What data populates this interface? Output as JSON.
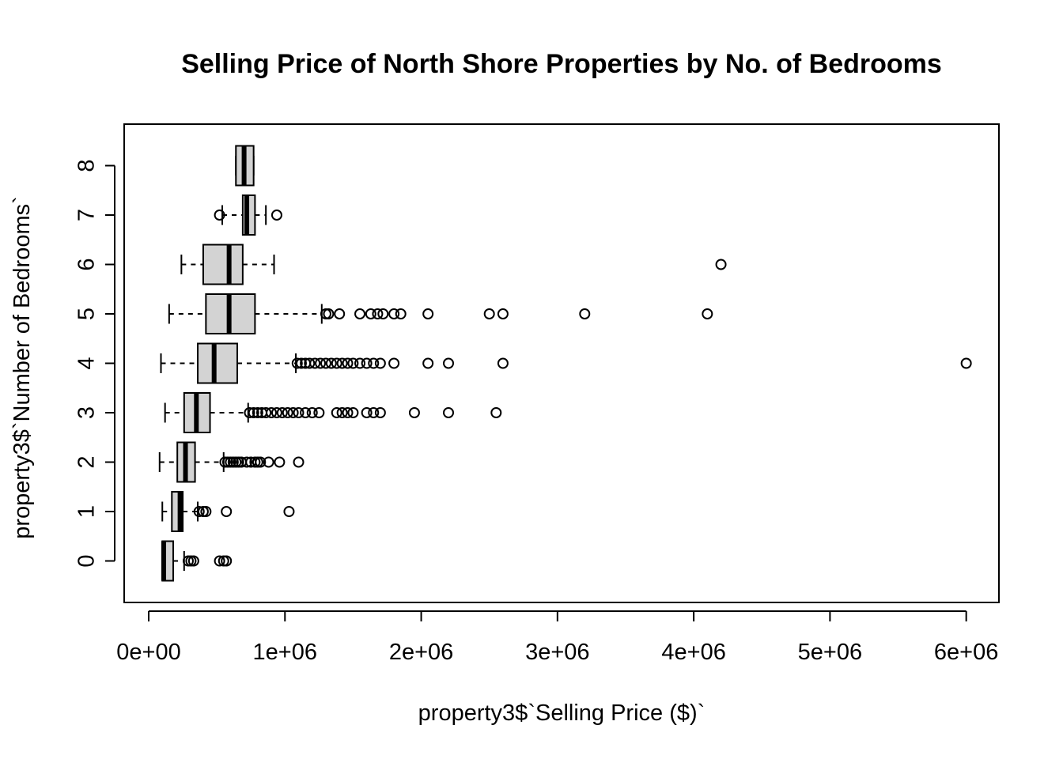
{
  "chart_data": {
    "type": "boxplot",
    "orientation": "horizontal",
    "title": "Selling Price of North Shore Properties by No. of Bedrooms",
    "xlabel": "property3$`Selling Price ($)`",
    "ylabel": "property3$`Number of Bedrooms`",
    "xlim": [
      -180000,
      6240000
    ],
    "x_ticks": [
      0,
      1000000,
      2000000,
      3000000,
      4000000,
      5000000,
      6000000
    ],
    "x_tick_labels": [
      "0e+00",
      "1e+06",
      "2e+06",
      "3e+06",
      "4e+06",
      "5e+06",
      "6e+06"
    ],
    "colors": {
      "box_fill": "#d3d3d3",
      "stroke": "#000000"
    },
    "groups": [
      {
        "category": "0",
        "whisker_low": 100000,
        "q1": 100000,
        "median": 110000,
        "q3": 180000,
        "whisker_high": 260000,
        "outliers": [
          290000,
          310000,
          330000,
          520000,
          550000,
          570000
        ]
      },
      {
        "category": "1",
        "whisker_low": 100000,
        "q1": 170000,
        "median": 230000,
        "q3": 250000,
        "whisker_high": 360000,
        "outliers": [
          370000,
          400000,
          420000,
          570000,
          1030000
        ]
      },
      {
        "category": "2",
        "whisker_low": 80000,
        "q1": 210000,
        "median": 270000,
        "q3": 340000,
        "whisker_high": 550000,
        "outliers": [
          560000,
          580000,
          600000,
          620000,
          640000,
          660000,
          680000,
          720000,
          750000,
          780000,
          800000,
          820000,
          880000,
          960000,
          1100000
        ]
      },
      {
        "category": "3",
        "whisker_low": 120000,
        "q1": 260000,
        "median": 350000,
        "q3": 450000,
        "whisker_high": 730000,
        "outliers": [
          740000,
          770000,
          800000,
          830000,
          860000,
          900000,
          940000,
          980000,
          1020000,
          1060000,
          1100000,
          1150000,
          1200000,
          1250000,
          1380000,
          1420000,
          1460000,
          1500000,
          1600000,
          1650000,
          1700000,
          1950000,
          2200000,
          2550000
        ]
      },
      {
        "category": "4",
        "whisker_low": 90000,
        "q1": 360000,
        "median": 480000,
        "q3": 650000,
        "whisker_high": 1080000,
        "outliers": [
          1090000,
          1120000,
          1150000,
          1180000,
          1220000,
          1260000,
          1300000,
          1340000,
          1380000,
          1420000,
          1460000,
          1500000,
          1550000,
          1600000,
          1650000,
          1700000,
          1800000,
          2050000,
          2200000,
          2600000,
          6000000
        ]
      },
      {
        "category": "5",
        "whisker_low": 150000,
        "q1": 420000,
        "median": 590000,
        "q3": 780000,
        "whisker_high": 1270000,
        "outliers": [
          1300000,
          1320000,
          1400000,
          1550000,
          1630000,
          1680000,
          1720000,
          1800000,
          1850000,
          2050000,
          2500000,
          2600000,
          3200000,
          4100000
        ]
      },
      {
        "category": "6",
        "whisker_low": 240000,
        "q1": 400000,
        "median": 590000,
        "q3": 690000,
        "whisker_high": 920000,
        "outliers": [
          4200000
        ]
      },
      {
        "category": "7",
        "whisker_low": 540000,
        "q1": 690000,
        "median": 720000,
        "q3": 780000,
        "whisker_high": 860000,
        "outliers": [
          520000,
          940000
        ]
      },
      {
        "category": "8",
        "whisker_low": 640000,
        "q1": 640000,
        "median": 700000,
        "q3": 770000,
        "whisker_high": 770000,
        "outliers": []
      }
    ]
  }
}
